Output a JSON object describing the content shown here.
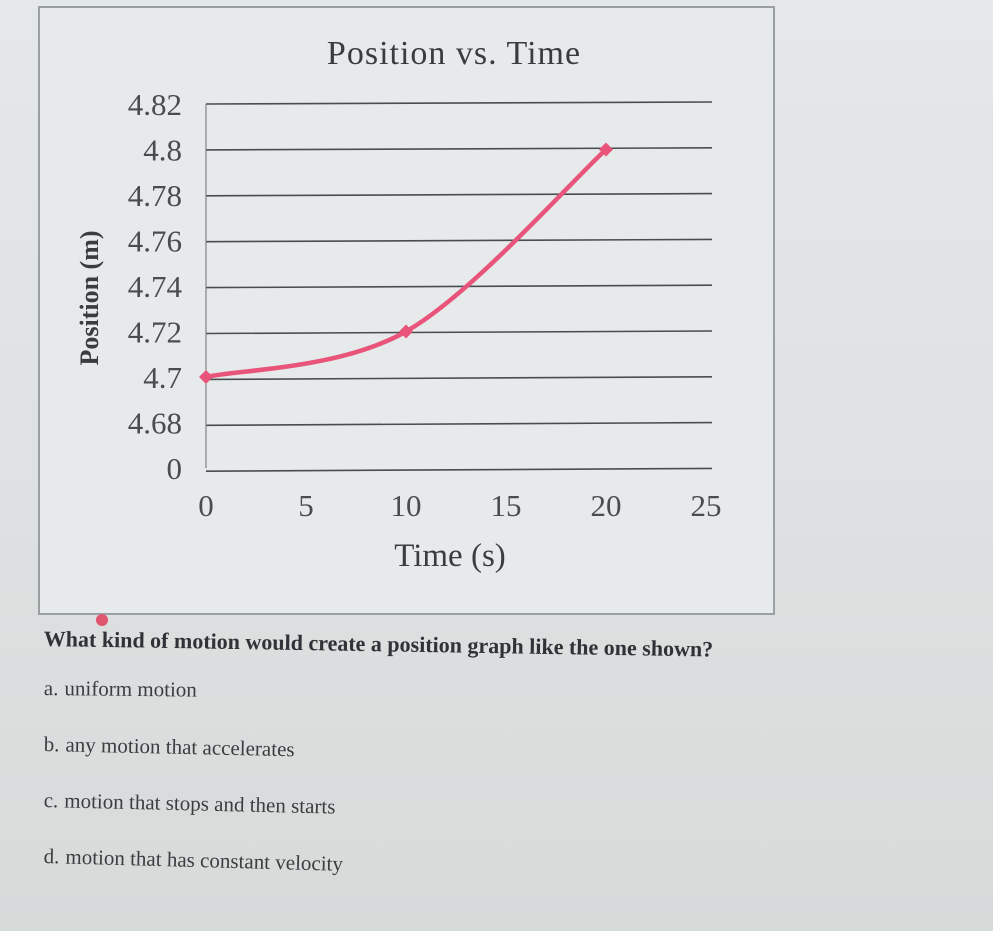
{
  "chart_data": {
    "type": "line",
    "title": "Position vs. Time",
    "xlabel": "Time (s)",
    "ylabel": "Position (m)",
    "x_ticks": [
      "0",
      "5",
      "10",
      "15",
      "20",
      "25"
    ],
    "y_ticks": [
      "0",
      "4.68",
      "4.7",
      "4.72",
      "4.74",
      "4.76",
      "4.78",
      "4.8",
      "4.82"
    ],
    "xlim": [
      0,
      25
    ],
    "grid": true,
    "series": [
      {
        "color": "#e8547a",
        "points": [
          {
            "x": 0,
            "y": 4.7
          },
          {
            "x": 10,
            "y": 4.72
          },
          {
            "x": 20,
            "y": 4.8
          }
        ]
      }
    ]
  },
  "question": {
    "text": "What kind of motion would create a position graph like the one shown?",
    "options": [
      {
        "letter": "a.",
        "text": "uniform motion"
      },
      {
        "letter": "b.",
        "text": "any motion that accelerates"
      },
      {
        "letter": "c.",
        "text": "motion that stops and then starts"
      },
      {
        "letter": "d.",
        "text": "motion that has constant velocity"
      }
    ]
  }
}
